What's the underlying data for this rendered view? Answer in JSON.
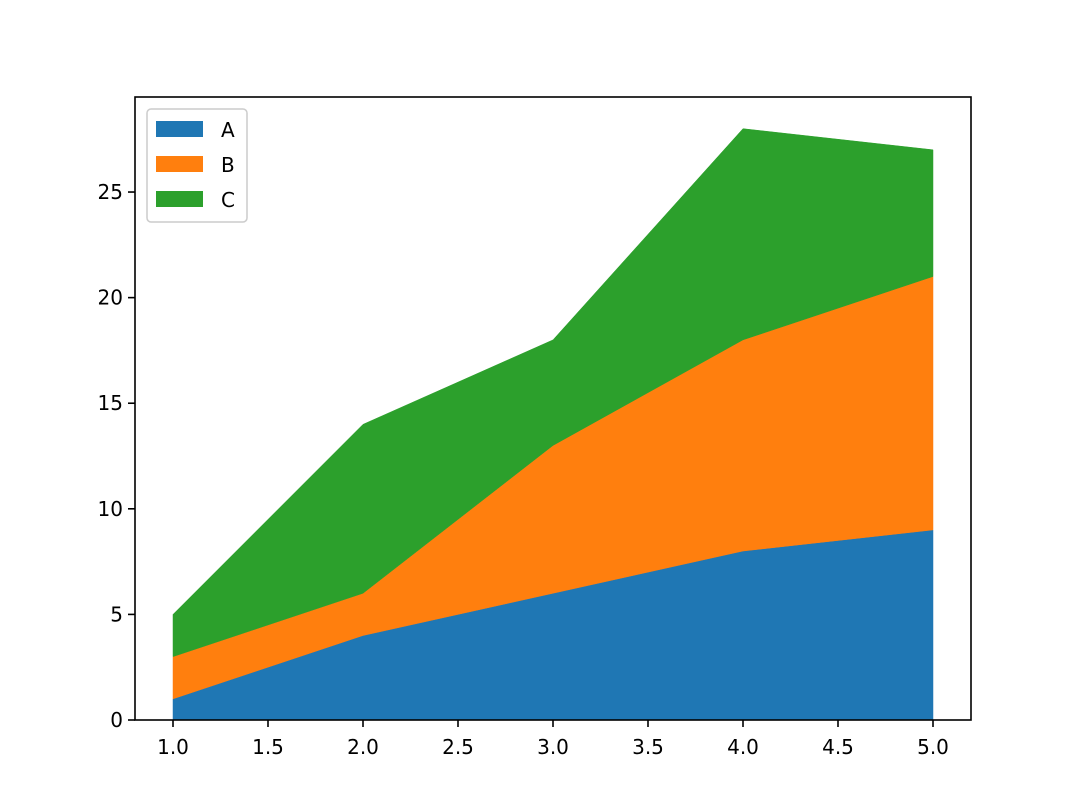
{
  "chart_data": {
    "type": "area",
    "stacked": true,
    "title": "",
    "xlabel": "",
    "ylabel": "",
    "x": [
      1,
      2,
      3,
      4,
      5
    ],
    "series": [
      {
        "name": "A",
        "values": [
          1,
          4,
          6,
          8,
          9
        ],
        "color": "#1f77b4"
      },
      {
        "name": "B",
        "values": [
          2,
          2,
          7,
          10,
          12
        ],
        "color": "#ff7f0e"
      },
      {
        "name": "C",
        "values": [
          2,
          8,
          5,
          10,
          6
        ],
        "color": "#2ca02c"
      }
    ],
    "xlim": [
      0.8,
      5.2
    ],
    "ylim": [
      0,
      29.5
    ],
    "xticks": [
      "1.0",
      "1.5",
      "2.0",
      "2.5",
      "3.0",
      "3.5",
      "4.0",
      "4.5",
      "5.0"
    ],
    "yticks": [
      "0",
      "5",
      "10",
      "15",
      "20",
      "25"
    ],
    "grid": false,
    "legend": "top-left"
  }
}
